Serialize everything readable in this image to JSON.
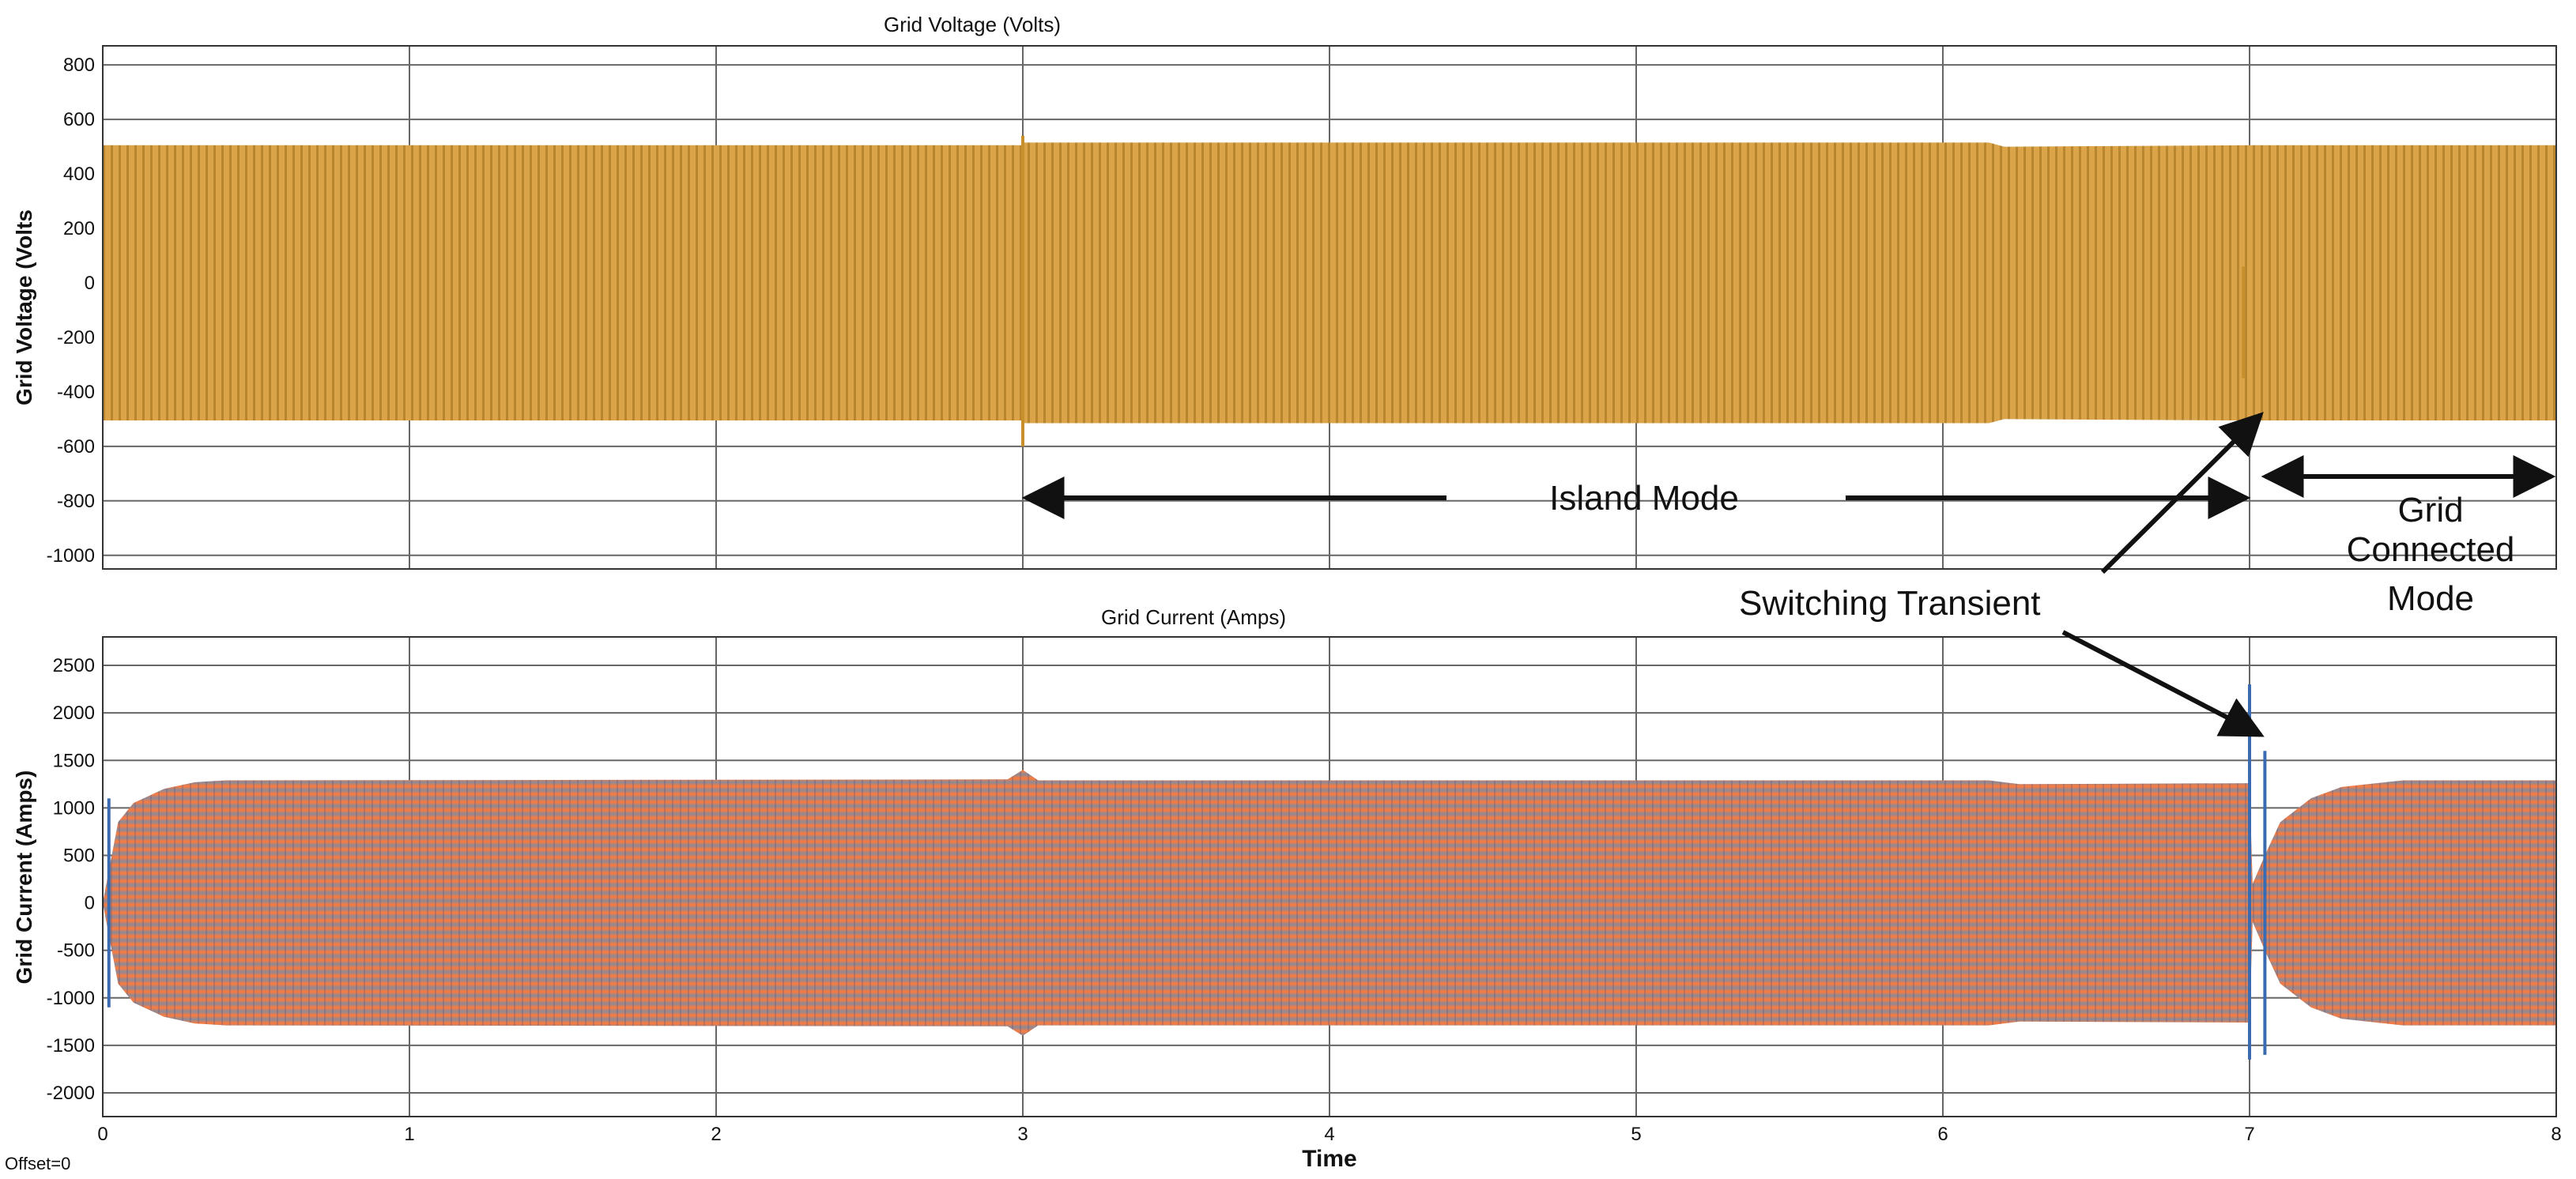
{
  "chart_data": [
    {
      "type": "line",
      "title": "Grid Voltage (Volts)",
      "ylabel": "Grid Voltage (Volts",
      "xlim": [
        0,
        8
      ],
      "ylim": [
        -1050,
        870
      ],
      "x_ticks": [
        0,
        1,
        2,
        3,
        4,
        5,
        6,
        7,
        8
      ],
      "y_ticks": [
        -1000,
        -800,
        -600,
        -400,
        -200,
        0,
        200,
        400,
        600,
        800
      ],
      "grid": true,
      "color": "#d9a040",
      "series": [
        {
          "envelope": {
            "x": [
              0,
              3.0,
              3.001,
              6.15,
              6.2,
              7.0,
              7.001,
              8
            ],
            "upper": [
              505,
              505,
              515,
              515,
              500,
              505,
              505,
              505
            ],
            "lower": [
              -505,
              -505,
              -515,
              -515,
              -500,
              -505,
              -505,
              -505
            ]
          }
        }
      ],
      "events": [
        {
          "x": 3.0,
          "min": -600,
          "max": 540
        },
        {
          "x": 6.98,
          "min": -350,
          "max": 60
        }
      ]
    },
    {
      "type": "line",
      "title": "Grid Current (Amps)",
      "ylabel": "Grid Current (Amps)",
      "xlabel": "Time",
      "xlim": [
        0,
        8
      ],
      "ylim": [
        -2250,
        2800
      ],
      "x_ticks": [
        0,
        1,
        2,
        3,
        4,
        5,
        6,
        7,
        8
      ],
      "y_ticks": [
        -2000,
        -1500,
        -1000,
        -500,
        0,
        500,
        1000,
        1500,
        2000,
        2500
      ],
      "grid": true,
      "color_edge": "#8a8a98",
      "color_center": "#ff7a3c",
      "series": [
        {
          "envelope": {
            "x": [
              0,
              0.05,
              0.1,
              0.2,
              0.3,
              0.4,
              2.95,
              3.0,
              3.05,
              6.15,
              6.25,
              7.0,
              7.01,
              7.05,
              7.1,
              7.2,
              7.3,
              7.5,
              8
            ],
            "upper": [
              0,
              850,
              1050,
              1200,
              1270,
              1290,
              1300,
              1400,
              1290,
              1290,
              1250,
              1260,
              200,
              500,
              850,
              1100,
              1220,
              1290,
              1290
            ],
            "lower": [
              0,
              -850,
              -1050,
              -1200,
              -1270,
              -1290,
              -1300,
              -1400,
              -1290,
              -1290,
              -1250,
              -1260,
              -200,
              -500,
              -850,
              -1100,
              -1220,
              -1290,
              -1290
            ]
          }
        }
      ],
      "events": [
        {
          "x": 0.02,
          "min": -1100,
          "max": 1100
        },
        {
          "x": 7.0,
          "min": -1650,
          "max": 2300
        },
        {
          "x": 7.05,
          "min": -1600,
          "max": 1600
        }
      ]
    }
  ],
  "annotations": {
    "island_mode": "Island Mode",
    "grid_connected_1": "Grid",
    "grid_connected_2": "Connected",
    "grid_connected_3": "Mode",
    "switching_transient": "Switching Transient"
  },
  "offset_label": "Offset=0"
}
